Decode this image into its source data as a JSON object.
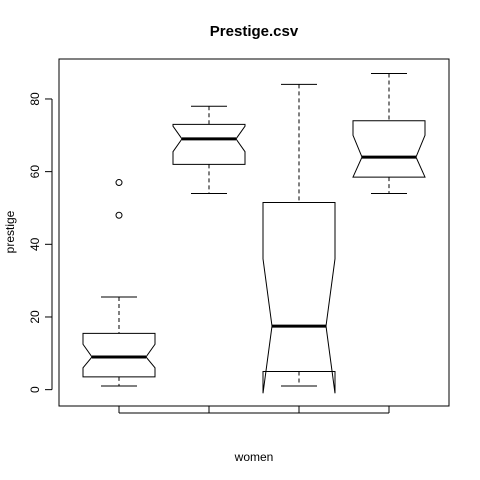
{
  "chart_data": {
    "type": "boxplot",
    "title": "Prestige.csv",
    "xlabel": "women",
    "ylabel": "prestige",
    "ylim": [
      -4.5,
      91
    ],
    "y_ticks": [
      0,
      20,
      40,
      60,
      80
    ],
    "notched": true,
    "categories": [
      "",
      "",
      "",
      ""
    ],
    "boxes": [
      {
        "whisker_low": 1,
        "q1": 3.5,
        "median": 9,
        "q3": 15.5,
        "whisker_high": 25.5,
        "notch_low": 6,
        "notch_high": 12.5,
        "outliers": [
          48,
          57
        ]
      },
      {
        "whisker_low": 54,
        "q1": 62,
        "median": 69,
        "q3": 73,
        "whisker_high": 78,
        "notch_low": 65.5,
        "notch_high": 72.5,
        "outliers": []
      },
      {
        "whisker_low": 1,
        "q1": 5,
        "median": 17.5,
        "q3": 51.5,
        "whisker_high": 84,
        "notch_low": -1,
        "notch_high": 36,
        "outliers": []
      },
      {
        "whisker_low": 54,
        "q1": 58.5,
        "median": 64,
        "q3": 74,
        "whisker_high": 87,
        "notch_low": 58.5,
        "notch_high": 70,
        "outliers": []
      }
    ]
  }
}
